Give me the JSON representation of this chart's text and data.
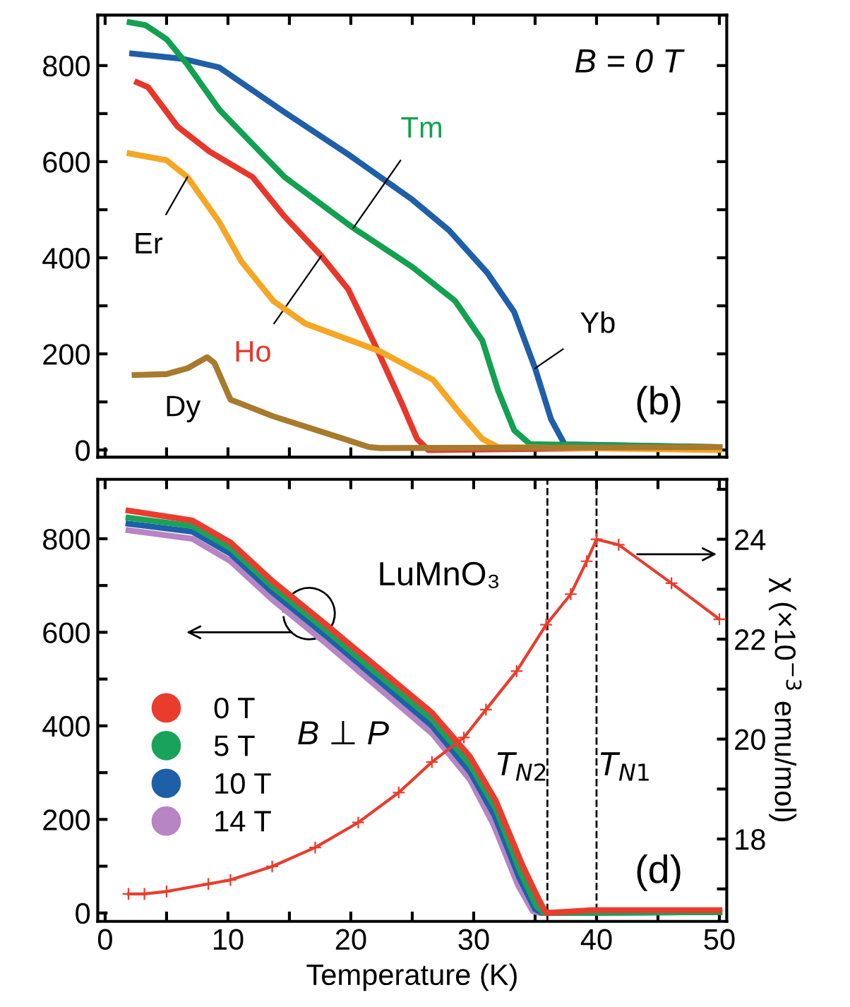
{
  "chart_data": [
    {
      "type": "line",
      "xlim": [
        -0.6,
        50.6
      ],
      "ylim": [
        -15,
        905
      ],
      "xticks": [
        0,
        5,
        10,
        15,
        20,
        25,
        30,
        35,
        40,
        45,
        50
      ],
      "yticks": [
        0,
        {
          "value": 100,
          "label": null
        },
        200,
        {
          "value": 300,
          "label": null
        },
        400,
        {
          "value": 500,
          "label": null
        },
        600,
        {
          "value": 700,
          "label": null
        },
        800
      ],
      "tick_labels": "y",
      "grid": false,
      "legend": false,
      "marker": "none",
      "line_style": "solid",
      "annotations": [
        "B = 0 T",
        "(b)"
      ],
      "series": [
        {
          "name": "Yb",
          "color": "#1f5fa8",
          "x": [
            2.2,
            6.3,
            9.3,
            14.6,
            19.8,
            25,
            28,
            31.1,
            33.3,
            35,
            36.3,
            37.4,
            50
          ],
          "values": [
            825,
            814,
            796,
            703,
            615,
            521,
            457,
            369,
            287,
            170,
            64,
            12,
            6
          ]
        },
        {
          "name": "Tm",
          "color": "#12a150",
          "x": [
            2,
            3.3,
            5,
            6.7,
            9.3,
            14.6,
            20.2,
            25,
            28.5,
            30.7,
            32,
            33.3,
            34.6,
            50
          ],
          "values": [
            890,
            884,
            855,
            802,
            708,
            568,
            462,
            381,
            310,
            228,
            123,
            41,
            12,
            6
          ]
        },
        {
          "name": "Ho",
          "color": "#e8372a",
          "x": [
            2.6,
            3.5,
            5.9,
            8.5,
            12,
            14.6,
            17.6,
            19.8,
            22,
            24.1,
            25.4,
            26.3,
            50
          ],
          "values": [
            765,
            755,
            673,
            621,
            568,
            486,
            404,
            334,
            217,
            100,
            23,
            0,
            6
          ]
        },
        {
          "name": "Er",
          "color": "#f5a623",
          "x": [
            2,
            5,
            6.7,
            9.3,
            11.1,
            13.7,
            16.3,
            22.4,
            26.7,
            28.9,
            30.7,
            32,
            50
          ],
          "values": [
            617,
            603,
            568,
            474,
            392,
            310,
            263,
            205,
            146,
            76,
            23,
            6,
            0
          ]
        },
        {
          "name": "Dy",
          "color": "#a87a2e",
          "x": [
            2.4,
            5,
            6.7,
            8.3,
            8.9,
            10.2,
            13.7,
            18,
            21.5,
            22.4,
            50
          ],
          "values": [
            156,
            158,
            170,
            193,
            181,
            105,
            70,
            35,
            6,
            4,
            6
          ]
        }
      ]
    },
    {
      "type": "line",
      "xlim": [
        -0.6,
        50.6
      ],
      "ylim": [
        -18,
        927
      ],
      "y2lim": [
        16.35,
        25.2
      ],
      "xticks": [
        0,
        {
          "value": 5,
          "label": null
        },
        10,
        {
          "value": 15,
          "label": null
        },
        20,
        {
          "value": 25,
          "label": null
        },
        30,
        {
          "value": 35,
          "label": null
        },
        40,
        {
          "value": 45,
          "label": null
        },
        50
      ],
      "yticks": [
        0,
        {
          "value": 100,
          "label": null
        },
        200,
        {
          "value": 300,
          "label": null
        },
        400,
        {
          "value": 500,
          "label": null
        },
        600,
        {
          "value": 700,
          "label": null
        },
        800
      ],
      "y2ticks": [
        {
          "value": 17,
          "label": null
        },
        18,
        {
          "value": 19,
          "label": null
        },
        20,
        {
          "value": 21,
          "label": null
        },
        22,
        {
          "value": 23,
          "label": null
        },
        24,
        {
          "value": 25,
          "label": null
        }
      ],
      "xlabel": "Temperature (K)",
      "y2label": "χ (×10$^{−3}$ emu/mol)",
      "grid": false,
      "legend": "bottom left",
      "marker": "none",
      "line_style": "solid",
      "annotations": [
        "LuMnO₃",
        "B ⊥ P",
        "(d)"
      ],
      "ref_lines": [
        {
          "axis": "x",
          "value": 36,
          "label": "T$_{N2}$",
          "line_style": "dashed",
          "color": "#000000"
        },
        {
          "axis": "x",
          "value": 40,
          "label": "T$_{N1}$",
          "line_style": "dashed",
          "color": "#000000"
        }
      ],
      "series": [
        {
          "name": "14 T",
          "color": "#b784c4",
          "x": [
            1.9,
            7.1,
            10.2,
            13.6,
            18,
            22.3,
            26.6,
            29.7,
            31.6,
            33.6,
            34.8,
            35.4,
            50
          ],
          "values": [
            818,
            800,
            752,
            670,
            576,
            480,
            384,
            285,
            190,
            60,
            4,
            0,
            2
          ]
        },
        {
          "name": "10 T",
          "color": "#1f5fa8",
          "x": [
            1.9,
            7.1,
            10.2,
            13.6,
            18,
            22.3,
            26.6,
            29.7,
            31.7,
            33.7,
            35,
            35.6,
            50
          ],
          "values": [
            832,
            815,
            768,
            686,
            592,
            496,
            400,
            302,
            208,
            76,
            8,
            0,
            2
          ]
        },
        {
          "name": "5 T",
          "color": "#19a35a",
          "x": [
            1.9,
            7.1,
            10.2,
            13.6,
            18,
            22.3,
            26.6,
            29.7,
            31.8,
            33.8,
            35.1,
            35.7,
            50
          ],
          "values": [
            845,
            827,
            780,
            698,
            604,
            508,
            414,
            317,
            223,
            88,
            15,
            0,
            2
          ]
        },
        {
          "name": "0 T",
          "color": "#ea3c2d",
          "x": [
            1.9,
            7.1,
            10.2,
            13.6,
            18,
            22.3,
            26.6,
            29.7,
            31.8,
            34,
            35.3,
            35.9,
            39.6,
            50
          ],
          "values": [
            860,
            839,
            792,
            710,
            616,
            522,
            428,
            334,
            240,
            100,
            29,
            0,
            6,
            6
          ]
        },
        {
          "color": "#ea3c2d",
          "axis": "y2",
          "marker": "cross",
          "x": [
            1.9,
            3.2,
            5,
            8.4,
            10.2,
            13.6,
            17.1,
            20.6,
            23.9,
            26.6,
            29.2,
            31,
            33.5,
            35.9,
            37.9,
            39.2,
            40,
            41.8,
            46.1,
            50
          ],
          "values": [
            16.9,
            16.9,
            16.95,
            17.1,
            17.18,
            17.45,
            17.83,
            18.33,
            18.93,
            19.54,
            20.03,
            20.59,
            21.36,
            22.29,
            22.9,
            23.56,
            24.0,
            23.89,
            23.12,
            22.4
          ]
        }
      ]
    }
  ]
}
